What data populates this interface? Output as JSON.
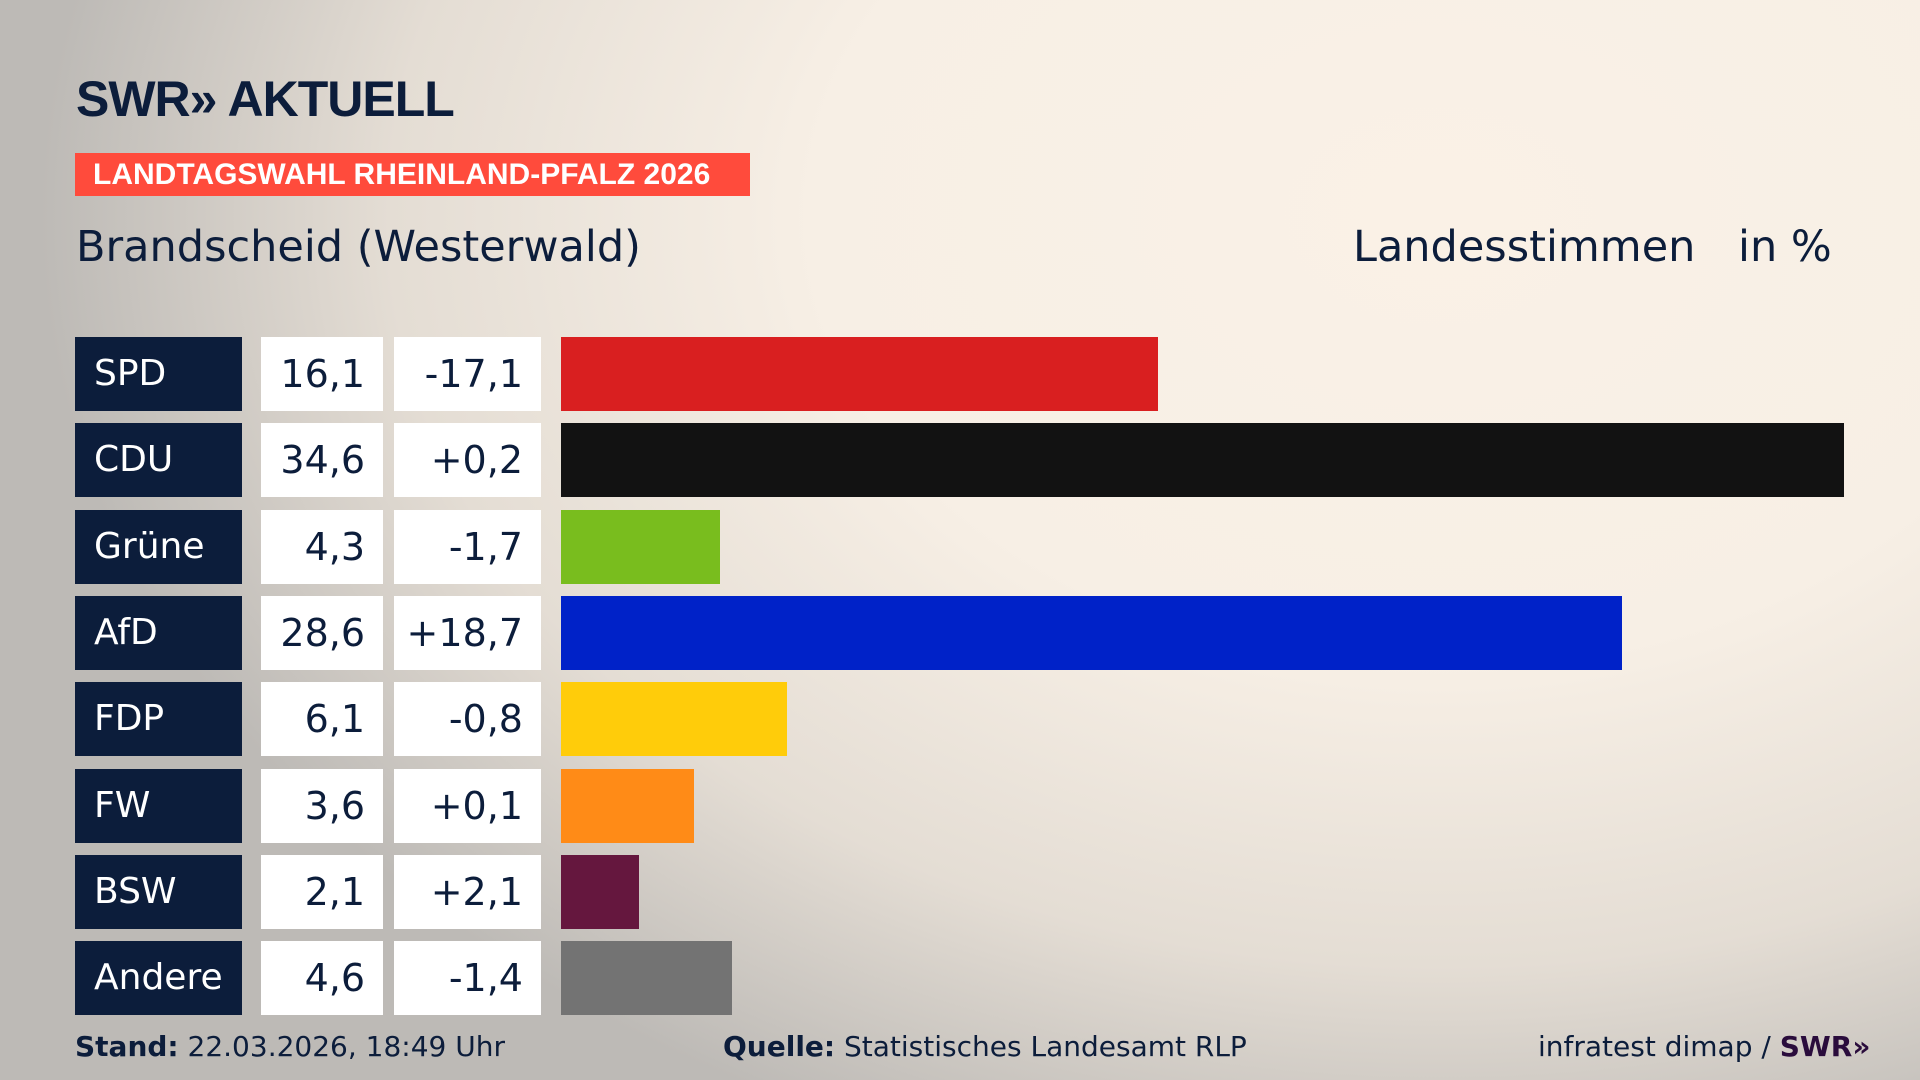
{
  "header": {
    "logo": "SWR» AKTUELL",
    "banner": "LANDTAGSWAHL RHEINLAND-PFALZ 2026",
    "region": "Brandscheid (Westerwald)",
    "vote_type": "Landesstimmen",
    "unit": "in %"
  },
  "chart_data": {
    "type": "bar",
    "orientation": "horizontal",
    "categories": [
      "SPD",
      "CDU",
      "Grüne",
      "AfD",
      "FDP",
      "FW",
      "BSW",
      "Andere"
    ],
    "values": [
      16.1,
      34.6,
      4.3,
      28.6,
      6.1,
      3.6,
      2.1,
      4.6
    ],
    "value_labels": [
      "16,1",
      "34,6",
      "4,3",
      "28,6",
      "6,1",
      "3,6",
      "2,1",
      "4,6"
    ],
    "diff_labels": [
      "-17,1",
      "+0,2",
      "-1,7",
      "+18,7",
      "-0,8",
      "+0,1",
      "+2,1",
      "-1,4"
    ],
    "colors": [
      "#d91f20",
      "#121212",
      "#79bd1e",
      "#0022c8",
      "#ffcc0a",
      "#ff8b17",
      "#65173e",
      "#737373"
    ],
    "xlim": [
      0,
      34.6
    ]
  },
  "footer": {
    "stand_label": "Stand:",
    "stand_value": "22.03.2026, 18:49 Uhr",
    "source_label": "Quelle:",
    "source_value": "Statistisches Landesamt RLP",
    "credit": "infratest dimap /",
    "credit_logo": "SWR»"
  }
}
